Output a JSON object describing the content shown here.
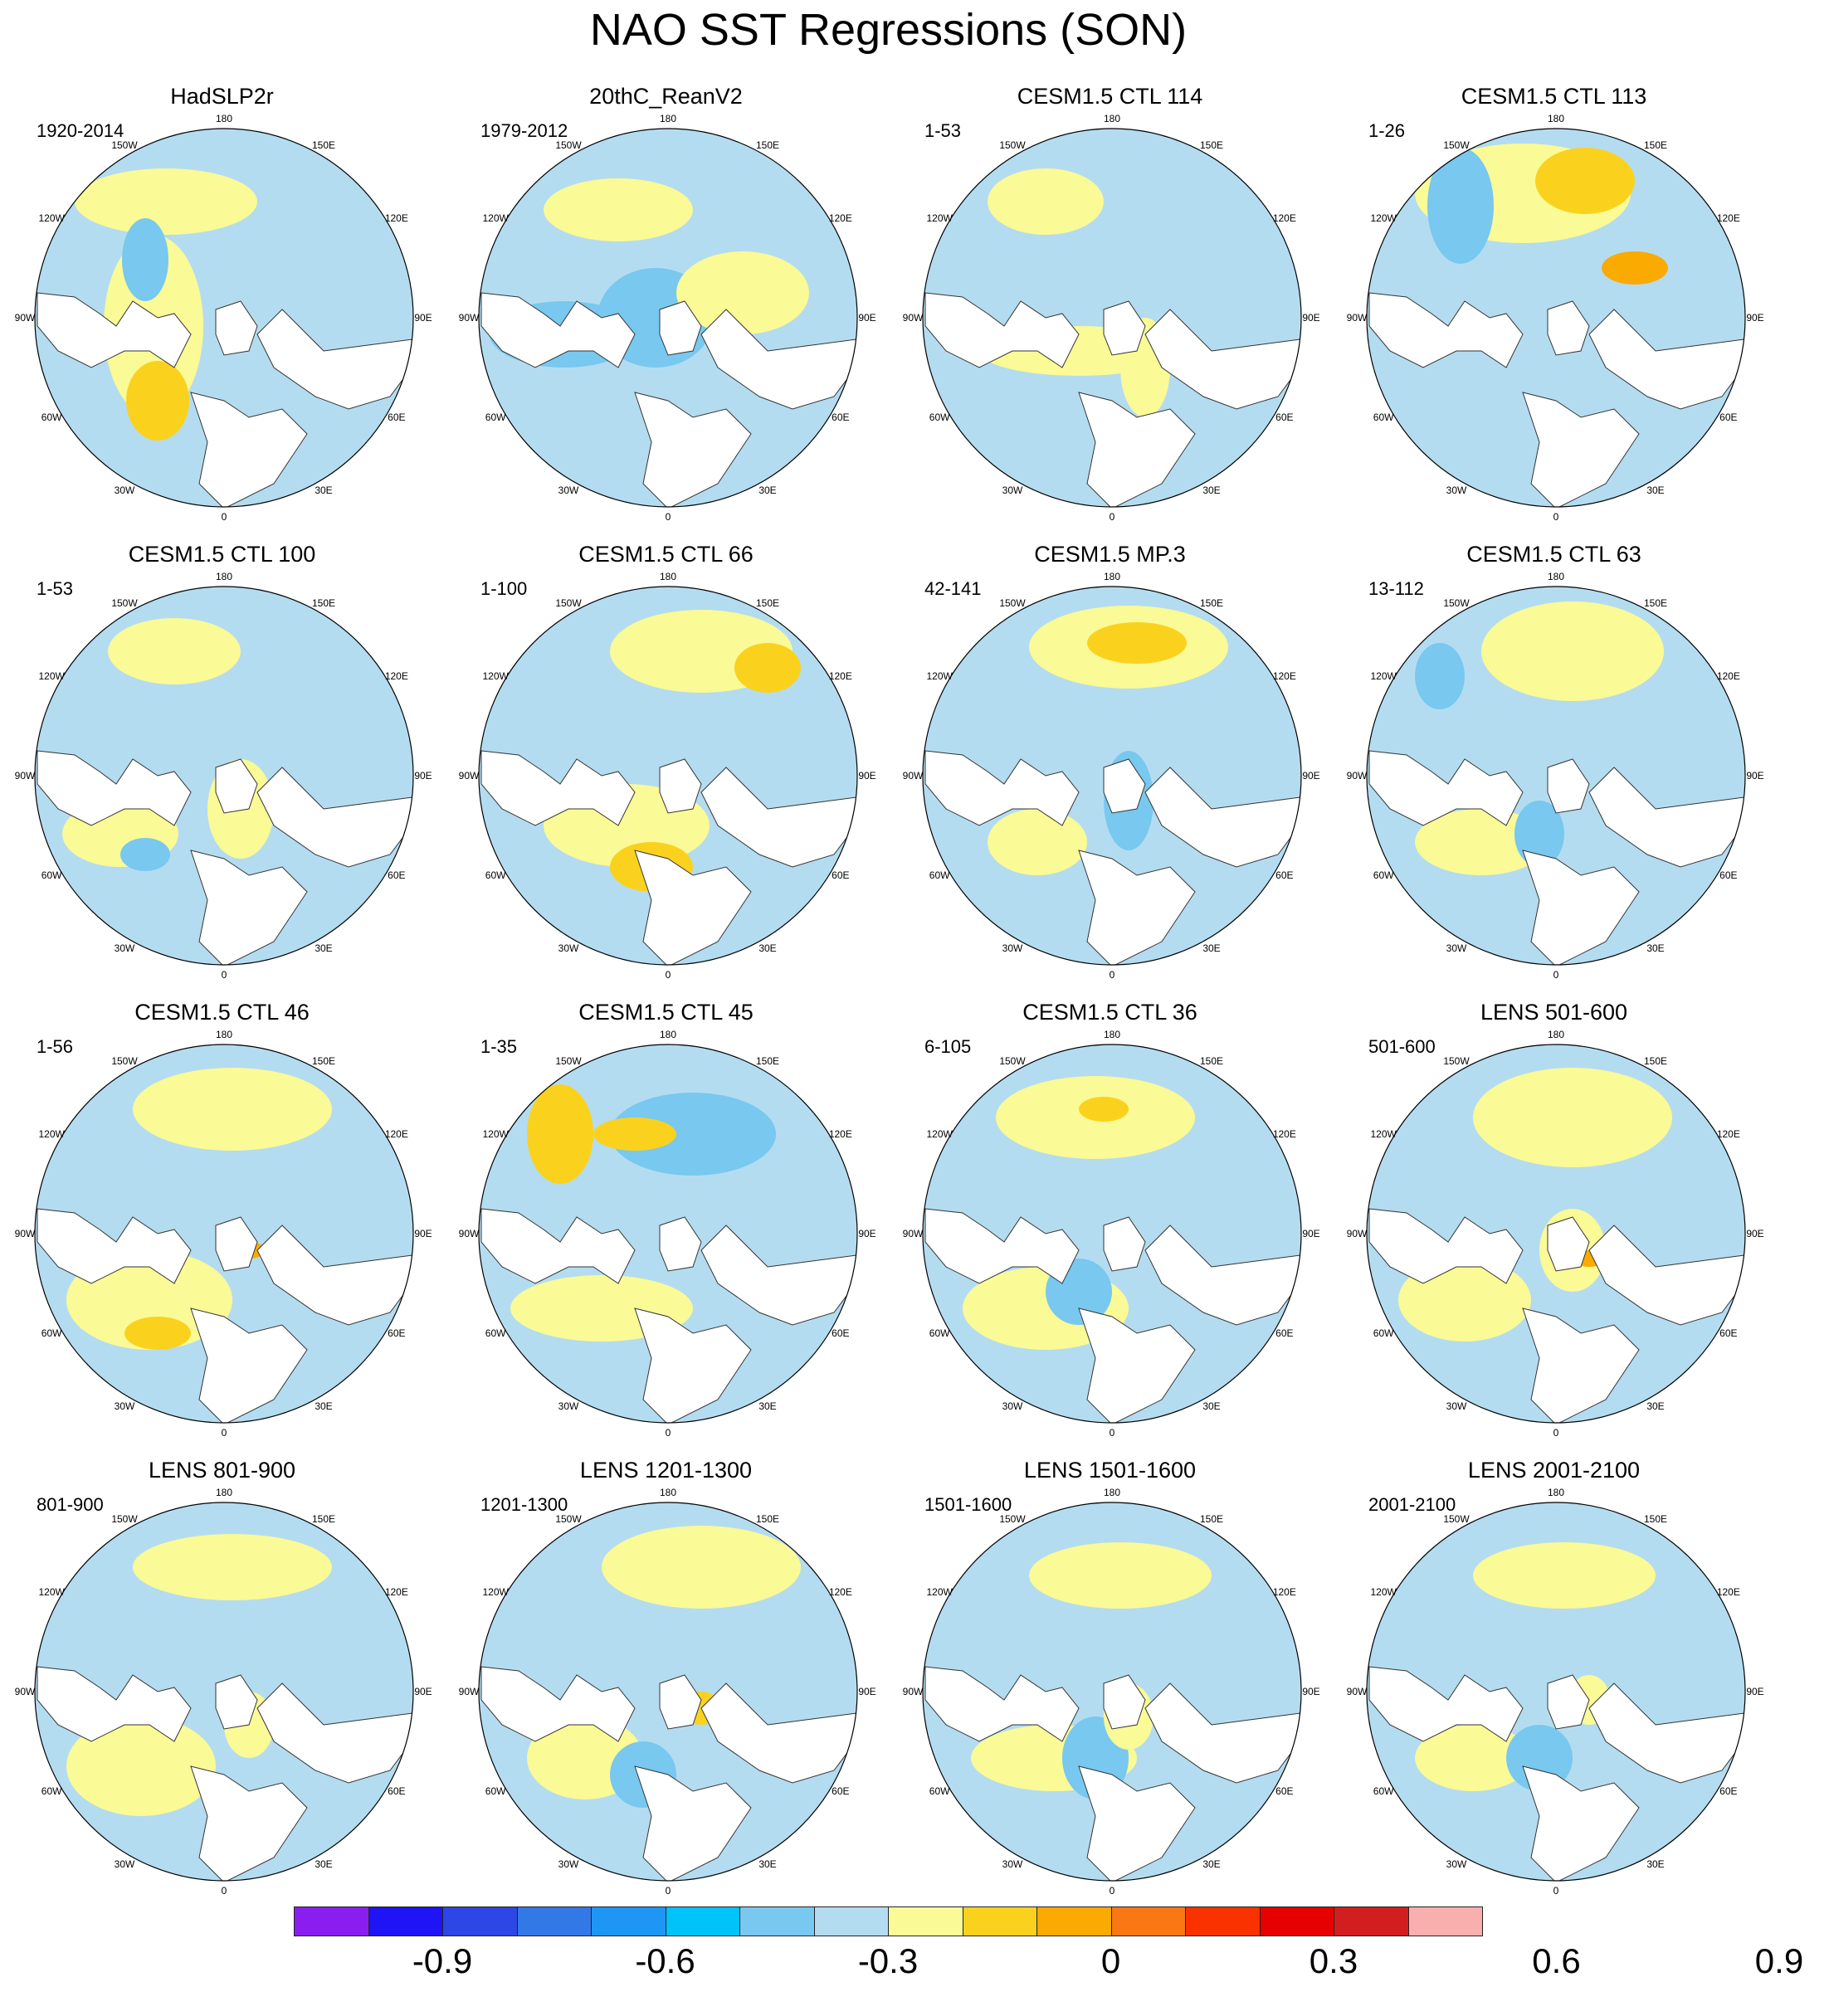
{
  "title": "NAO SST Regressions (SON)",
  "lon_labels": [
    "180",
    "150E",
    "120E",
    "90E",
    "60E",
    "30E",
    "0",
    "30W",
    "60W",
    "90W",
    "120W",
    "150W"
  ],
  "panels": [
    {
      "title": "HadSLP2r",
      "years": "1920-2014"
    },
    {
      "title": "20thC_ReanV2",
      "years": "1979-2012"
    },
    {
      "title": "CESM1.5 CTL 114",
      "years": "1-53"
    },
    {
      "title": "CESM1.5 CTL 113",
      "years": "1-26"
    },
    {
      "title": "CESM1.5 CTL 100",
      "years": "1-53"
    },
    {
      "title": "CESM1.5 CTL 66",
      "years": "1-100"
    },
    {
      "title": "CESM1.5 MP.3",
      "years": "42-141"
    },
    {
      "title": "CESM1.5 CTL 63",
      "years": "13-112"
    },
    {
      "title": "CESM1.5 CTL 46",
      "years": "1-56"
    },
    {
      "title": "CESM1.5 CTL 45",
      "years": "1-35"
    },
    {
      "title": "CESM1.5 CTL 36",
      "years": "6-105"
    },
    {
      "title": "LENS 501-600",
      "years": "501-600"
    },
    {
      "title": "LENS 801-900",
      "years": "801-900"
    },
    {
      "title": "LENS 1201-1300",
      "years": "1201-1300"
    },
    {
      "title": "LENS 1501-1600",
      "years": "1501-1600"
    },
    {
      "title": "LENS 2001-2100",
      "years": "2001-2100"
    }
  ],
  "colorbar": {
    "colors": [
      "#8a1ef0",
      "#1e14f5",
      "#2d46e6",
      "#3278e6",
      "#1e96f5",
      "#00c3fa",
      "#78c8f0",
      "#b4dcf0",
      "#fafa96",
      "#fad21e",
      "#faaa00",
      "#fa7814",
      "#fa3200",
      "#e60000",
      "#d21e1e",
      "#faafaf"
    ],
    "labels": [
      "-0.9",
      "-0.6",
      "-0.3",
      "0",
      "0.3",
      "0.6",
      "0.9"
    ]
  },
  "palette": {
    "light_blue": "#b4dcf0",
    "mid_blue": "#78c8f0",
    "light_yellow": "#fafa96",
    "mid_yellow": "#fad21e",
    "orange": "#faaa00"
  }
}
